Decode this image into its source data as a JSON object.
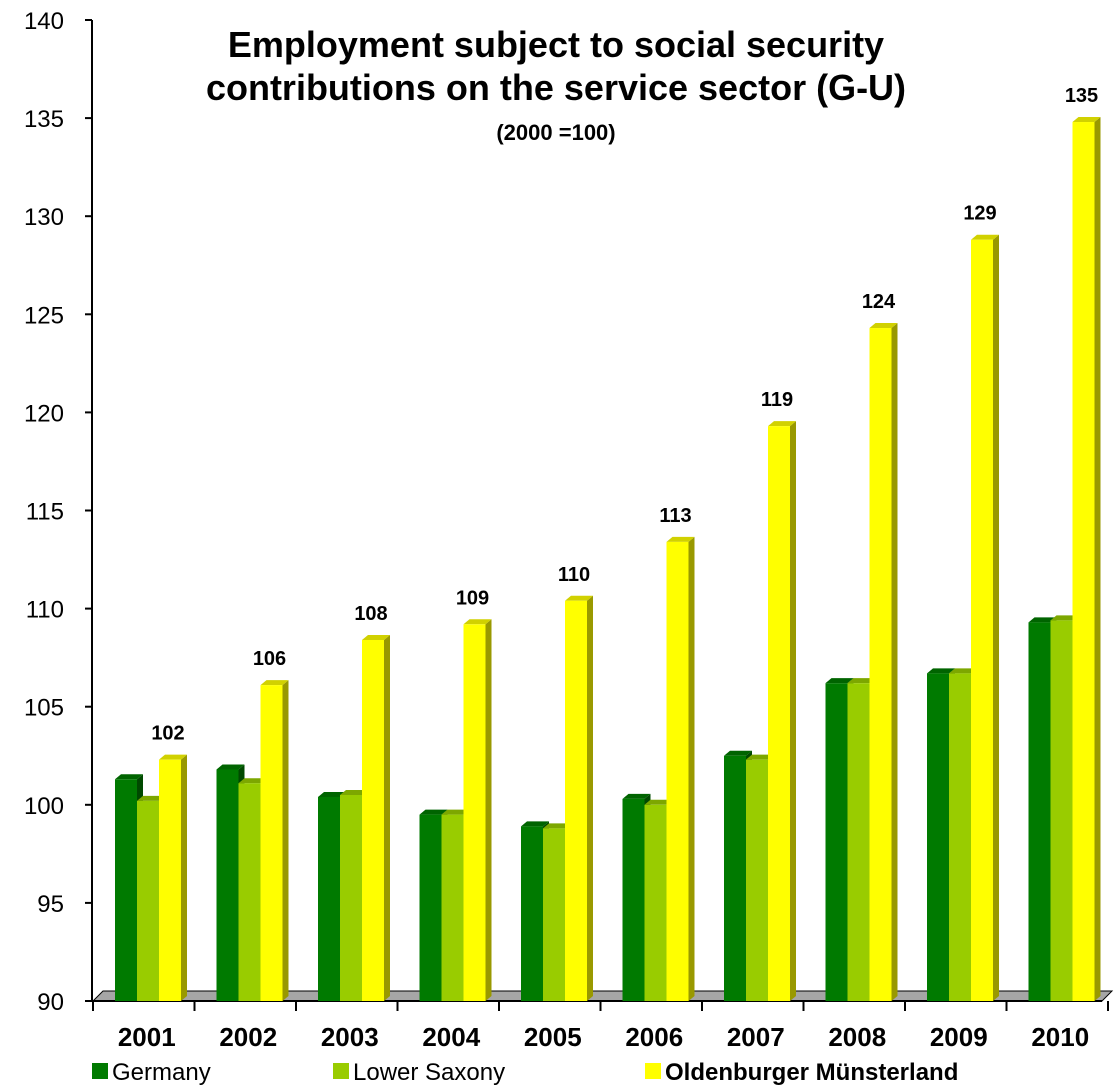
{
  "chart_data": {
    "type": "bar",
    "title_lines": [
      "Employment subject to social security",
      "contributions on the service sector (G-U)"
    ],
    "subtitle": "(2000 =100)",
    "xlabel": "",
    "ylabel": "",
    "categories": [
      "2001",
      "2002",
      "2003",
      "2004",
      "2005",
      "2006",
      "2007",
      "2008",
      "2009",
      "2010"
    ],
    "ylim": [
      90,
      140
    ],
    "yticks": [
      90,
      95,
      100,
      105,
      110,
      115,
      120,
      125,
      130,
      135,
      140
    ],
    "grid": false,
    "legend_position": "bottom",
    "series": [
      {
        "name": "Germany",
        "color": "#007A00",
        "legend_bold": false,
        "values": [
          101.3,
          101.8,
          100.4,
          99.5,
          98.9,
          100.3,
          102.5,
          106.2,
          106.7,
          109.3
        ]
      },
      {
        "name": "Lower Saxony",
        "color": "#99CC00",
        "legend_bold": false,
        "values": [
          100.2,
          101.1,
          100.5,
          99.5,
          98.8,
          100.0,
          102.3,
          106.2,
          106.7,
          109.4
        ]
      },
      {
        "name": "Oldenburger Münsterland",
        "color": "#FFFF00",
        "legend_bold": true,
        "values": [
          102.3,
          106.1,
          108.4,
          109.2,
          110.4,
          113.4,
          119.3,
          124.3,
          128.8,
          134.8
        ],
        "data_labels": [
          "102",
          "106",
          "108",
          "109",
          "110",
          "113",
          "119",
          "124",
          "129",
          "135"
        ]
      }
    ]
  }
}
